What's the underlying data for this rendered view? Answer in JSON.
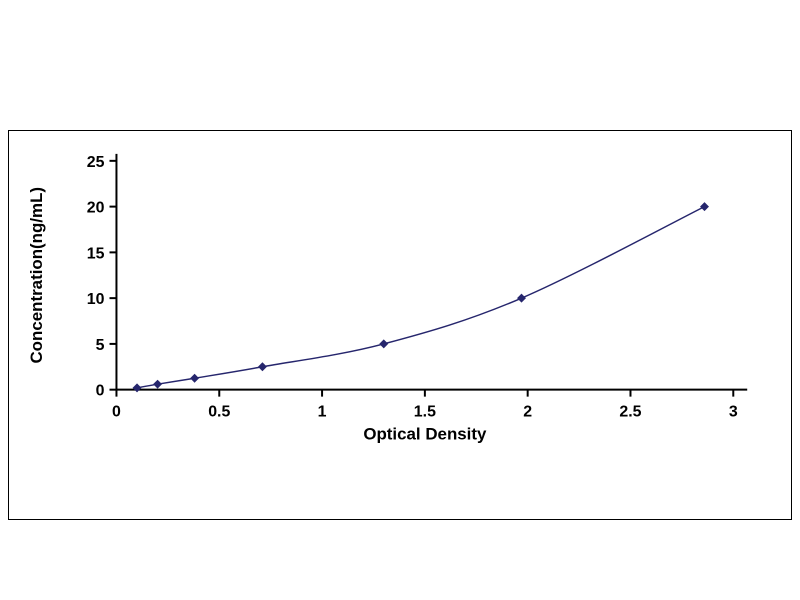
{
  "chart_data": {
    "type": "line",
    "title": "",
    "xlabel": "Optical Density",
    "ylabel": "Concentration(ng/mL)",
    "x": [
      0.1,
      0.2,
      0.38,
      0.71,
      1.3,
      1.97,
      2.86
    ],
    "y": [
      0.2,
      0.6,
      1.25,
      2.5,
      5,
      10,
      20
    ],
    "xlim": [
      0,
      3
    ],
    "ylim": [
      0,
      25
    ],
    "x_ticks": [
      {
        "value": 0,
        "label": "0"
      },
      {
        "value": 0.5,
        "label": "0.5"
      },
      {
        "value": 1,
        "label": "1"
      },
      {
        "value": 1.5,
        "label": "1.5"
      },
      {
        "value": 2,
        "label": "2"
      },
      {
        "value": 2.5,
        "label": "2.5"
      },
      {
        "value": 3,
        "label": "3"
      }
    ],
    "y_ticks": [
      {
        "value": 0,
        "label": "0"
      },
      {
        "value": 5,
        "label": "5"
      },
      {
        "value": 10,
        "label": "10"
      },
      {
        "value": 15,
        "label": "15"
      },
      {
        "value": 20,
        "label": "20"
      },
      {
        "value": 25,
        "label": "25"
      }
    ],
    "marker": "diamond",
    "grid": false,
    "legend": false,
    "line_color": "#26266d",
    "marker_color": "#26266d",
    "axis_color": "#000000",
    "plot_background": "#ffffff",
    "frame_border_color": "#000000"
  }
}
